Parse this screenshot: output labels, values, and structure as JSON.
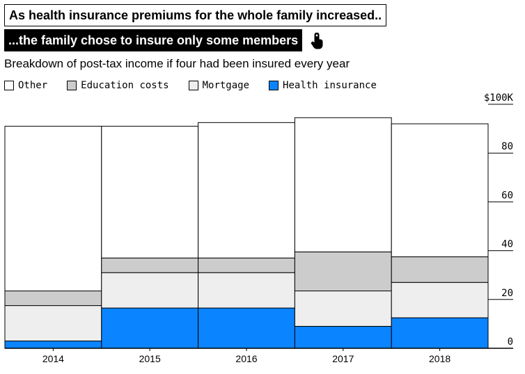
{
  "headline": {
    "line1": "As health insurance premiums for the whole family increased..",
    "line2": "...the family chose to insure only some members"
  },
  "subtitle": "Breakdown of post-tax income if four had been insured every year",
  "icons": {
    "tap": "tap-pointer-icon"
  },
  "chart_data": {
    "type": "bar",
    "stacked": true,
    "categories": [
      "2014",
      "2015",
      "2016",
      "2017",
      "2018"
    ],
    "series": [
      {
        "name": "Health insurance",
        "color": "#0a84ff",
        "values": [
          3,
          16.5,
          16.5,
          9,
          12.5
        ]
      },
      {
        "name": "Mortgage",
        "color": "#eeeeee",
        "values": [
          14.5,
          14.5,
          14.5,
          14.5,
          14.5
        ]
      },
      {
        "name": "Education costs",
        "color": "#cccccc",
        "values": [
          6,
          6,
          6,
          16,
          10.5
        ]
      },
      {
        "name": "Other",
        "color": "#ffffff",
        "values": [
          67.5,
          54,
          55.5,
          55,
          54.5
        ]
      }
    ],
    "legend_order": [
      "Other",
      "Education costs",
      "Mortgage",
      "Health insurance"
    ],
    "legend_position": "top-left",
    "y_axis": {
      "position": "right",
      "ylim": [
        0,
        100
      ],
      "ticks": [
        0,
        20,
        40,
        60,
        80,
        100
      ],
      "tick_labels": [
        "0",
        "20",
        "40",
        "60",
        "80",
        "$100K"
      ]
    },
    "grid": false
  }
}
